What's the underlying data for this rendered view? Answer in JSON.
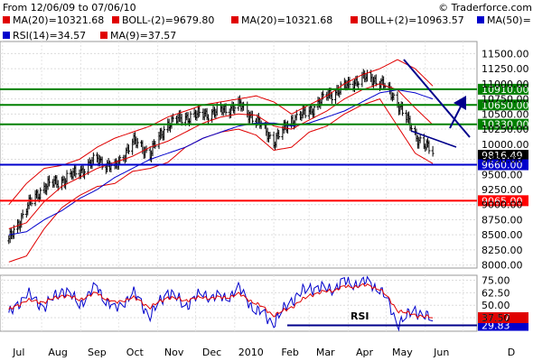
{
  "header": {
    "range": "From 12/06/09 to 07/06/10",
    "copyright": "© Traderforce.com"
  },
  "legend": [
    {
      "label": "MA(20)=10321.68",
      "color": "#e00000"
    },
    {
      "label": "BOLL-(2)=9679.80",
      "color": "#e00000"
    },
    {
      "label": "MA(20)=10321.68",
      "color": "#e00000"
    },
    {
      "label": "BOLL+(2)=10963.57",
      "color": "#e00000"
    },
    {
      "label": "MA(50)=",
      "color": "#0000cc"
    },
    {
      "label": "RSI(14)=34.57",
      "color": "#0000cc"
    },
    {
      "label": "MA(9)=37.57",
      "color": "#e00000"
    }
  ],
  "chart_data": [
    {
      "type": "ohlc",
      "x": [
        "2009-07-06",
        "2009-07-20",
        "2009-08-03",
        "2009-08-17",
        "2009-08-31",
        "2009-09-14",
        "2009-09-28",
        "2009-10-12",
        "2009-10-26",
        "2009-11-09",
        "2009-11-23",
        "2009-12-07",
        "2009-12-21",
        "2010-01-04",
        "2010-01-18",
        "2010-02-01",
        "2010-02-15",
        "2010-03-01",
        "2010-03-15",
        "2010-03-29",
        "2010-04-12",
        "2010-04-26",
        "2010-05-10",
        "2010-05-24",
        "2010-06-07"
      ],
      "series": [
        {
          "name": "close",
          "values": [
            8400,
            8950,
            9300,
            9400,
            9550,
            9750,
            9600,
            10050,
            9850,
            10350,
            10450,
            10500,
            10550,
            10650,
            10400,
            10050,
            10400,
            10550,
            10800,
            10950,
            11100,
            11050,
            10700,
            10150,
            9850
          ]
        },
        {
          "name": "MA(20)",
          "values": [
            8600,
            8700,
            9050,
            9300,
            9450,
            9600,
            9700,
            9800,
            9950,
            10050,
            10200,
            10350,
            10450,
            10500,
            10480,
            10300,
            10250,
            10400,
            10550,
            10750,
            10900,
            11000,
            10900,
            10600,
            10321.68
          ]
        },
        {
          "name": "BOLL+(2)",
          "values": [
            9000,
            9350,
            9600,
            9650,
            9750,
            9950,
            10100,
            10200,
            10300,
            10450,
            10550,
            10650,
            10700,
            10750,
            10800,
            10700,
            10500,
            10650,
            10800,
            11000,
            11150,
            11250,
            11400,
            11250,
            10963.57
          ]
        },
        {
          "name": "BOLL-(2)",
          "values": [
            8050,
            8150,
            8600,
            8950,
            9150,
            9300,
            9350,
            9550,
            9600,
            9700,
            9950,
            10100,
            10200,
            10250,
            10150,
            9900,
            9950,
            10200,
            10300,
            10500,
            10650,
            10750,
            10300,
            9850,
            9679.8
          ]
        },
        {
          "name": "MA(50)",
          "values": [
            8500,
            8550,
            8750,
            8900,
            9100,
            9250,
            9450,
            9600,
            9750,
            9850,
            9950,
            10100,
            10200,
            10300,
            10350,
            10350,
            10300,
            10350,
            10450,
            10550,
            10700,
            10850,
            10900,
            10850,
            10750
          ]
        }
      ],
      "horizontal_levels": [
        {
          "label": "10910.00",
          "value": 10910,
          "color": "#008000"
        },
        {
          "label": "10650.00",
          "value": 10650,
          "color": "#008000"
        },
        {
          "label": "10330.00",
          "value": 10330,
          "color": "#008000"
        },
        {
          "label": "9816.49",
          "value": 9816.49,
          "color": "#000000"
        },
        {
          "label": "9660.00",
          "value": 9660,
          "color": "#0000cc"
        },
        {
          "label": "9065.00",
          "value": 9065,
          "color": "#ff0000"
        }
      ],
      "y_ticks": [
        "11500.00",
        "11250.00",
        "11000.00",
        "10750.00",
        "10500.00",
        "10250.00",
        "10000.00",
        "9750.00",
        "9500.00",
        "9250.00",
        "9000.00",
        "8750.00",
        "8500.00",
        "8250.00",
        "8000.00"
      ],
      "x_ticks": [
        "Jul",
        "Aug",
        "Sep",
        "Oct",
        "Nov",
        "Dec",
        "2010",
        "Feb",
        "Mar",
        "Apr",
        "May",
        "Jun",
        "D"
      ],
      "ylim": [
        7950,
        11700
      ],
      "grid": true
    },
    {
      "type": "line",
      "x": [
        "2009-07-06",
        "2009-07-20",
        "2009-08-03",
        "2009-08-17",
        "2009-08-31",
        "2009-09-14",
        "2009-09-28",
        "2009-10-12",
        "2009-10-26",
        "2009-11-09",
        "2009-11-23",
        "2009-12-07",
        "2009-12-21",
        "2010-01-04",
        "2010-01-18",
        "2010-02-01",
        "2010-02-15",
        "2010-03-01",
        "2010-03-15",
        "2010-03-29",
        "2010-04-12",
        "2010-04-26",
        "2010-05-10",
        "2010-05-24",
        "2010-06-07"
      ],
      "series": [
        {
          "name": "RSI(14)",
          "values": [
            40,
            62,
            48,
            66,
            52,
            68,
            44,
            63,
            40,
            64,
            50,
            62,
            56,
            66,
            45,
            33,
            55,
            68,
            66,
            72,
            73,
            68,
            32,
            45,
            34.57
          ]
        },
        {
          "name": "MA(9)",
          "values": [
            45,
            55,
            53,
            60,
            56,
            62,
            52,
            58,
            48,
            58,
            55,
            58,
            57,
            61,
            52,
            40,
            48,
            60,
            64,
            68,
            70,
            67,
            45,
            40,
            37.57
          ]
        }
      ],
      "annotation": "RSI",
      "level": {
        "label": "29.83",
        "value": 29.83
      },
      "last_label": "37.57",
      "y_ticks": [
        "75.00",
        "62.50",
        "50.00",
        "37.50"
      ],
      "ylim": [
        24,
        80
      ],
      "grid": true
    }
  ]
}
